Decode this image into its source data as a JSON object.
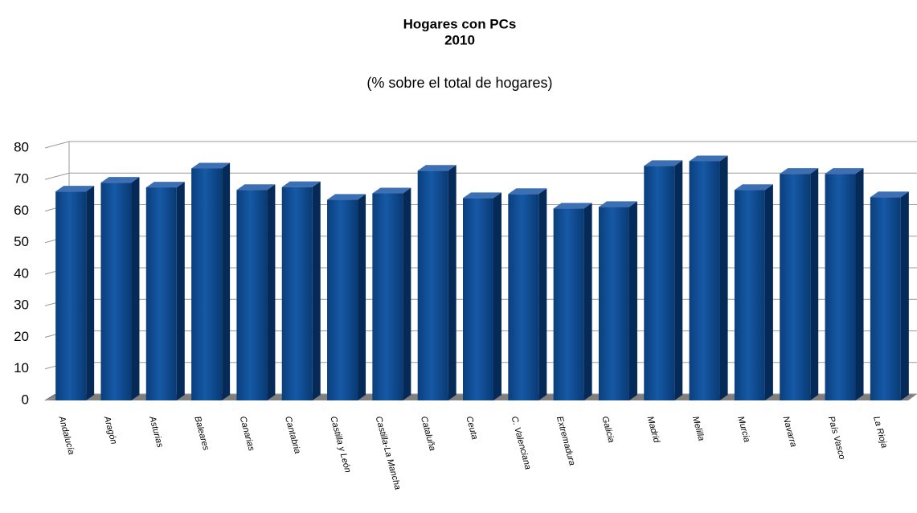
{
  "chart_data": {
    "type": "bar3d",
    "title": "Hogares con PCs",
    "title_line2": "2010",
    "subtitle": "(% sobre el total de hogares)",
    "categories": [
      "Andalucía",
      "Aragón",
      "Asturias",
      "Baleares",
      "Canarias",
      "Cantabria",
      "Castilla y León",
      "Castilla-La Mancha",
      "Cataluña",
      "Ceuta",
      "C. Valenciana",
      "Extremadura",
      "Galicia",
      "Madrid",
      "Melilla",
      "Murcia",
      "Navarra",
      "País Vasco",
      "La Rioja"
    ],
    "values": [
      66.2,
      69.0,
      67.5,
      73.5,
      66.7,
      67.6,
      63.6,
      65.6,
      72.8,
      64.1,
      65.4,
      60.8,
      61.3,
      74.3,
      75.8,
      66.7,
      71.8,
      71.8,
      64.4
    ],
    "color": "#0b4a8f",
    "ylim": [
      0,
      80
    ],
    "yticks": [
      0,
      10,
      20,
      30,
      40,
      50,
      60,
      70,
      80
    ],
    "grid": true
  }
}
